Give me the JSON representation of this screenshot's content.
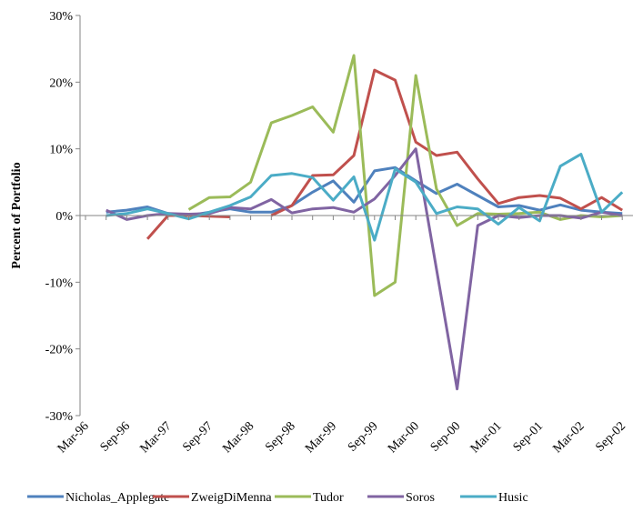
{
  "chart_data": {
    "type": "line",
    "y_label": "Percent of Portfolio",
    "categories": [
      "Mar-96",
      null,
      "Sep-96",
      null,
      "Mar-97",
      null,
      "Sep-97",
      null,
      "Mar-98",
      null,
      "Sep-98",
      null,
      "Mar-99",
      null,
      "Sep-99",
      null,
      "Mar-00",
      null,
      "Sep-00",
      null,
      "Mar-01",
      null,
      "Sep-01",
      null,
      "Mar-02",
      null,
      "Sep-02"
    ],
    "ylim": [
      -30,
      30
    ],
    "yticks": [
      {
        "value": -30,
        "label": "-30%"
      },
      {
        "value": -20,
        "label": "-20%"
      },
      {
        "value": -10,
        "label": "-10%"
      },
      {
        "value": 0,
        "label": "0%"
      },
      {
        "value": 10,
        "label": "10%"
      },
      {
        "value": 20,
        "label": "20%"
      },
      {
        "value": 30,
        "label": "30%"
      }
    ],
    "legend": "bottom",
    "series": [
      {
        "name": "Nicholas_Applegate",
        "color": "#4f81bd",
        "values": [
          null,
          0.5,
          0.8,
          1.3,
          0.3,
          0,
          0.5,
          1,
          0.5,
          0.5,
          1.5,
          3.5,
          5.2,
          2,
          6.7,
          7.2,
          5.2,
          3.3,
          4.7,
          3,
          1.3,
          1.5,
          0.8,
          1.6,
          0.8,
          0.5,
          0.3
        ]
      },
      {
        "name": "ZweigDiMenna",
        "color": "#c0504d",
        "values": [
          null,
          null,
          null,
          -3.5,
          0,
          0,
          -0.1,
          -0.2,
          null,
          0,
          1.5,
          6,
          6.1,
          9,
          21.8,
          20.3,
          11,
          9,
          9.5,
          5.5,
          1.8,
          2.7,
          3,
          2.6,
          1,
          2.7,
          0.8
        ]
      },
      {
        "name": "Tudor",
        "color": "#9bbb59",
        "values": [
          null,
          null,
          null,
          null,
          null,
          0.9,
          2.7,
          2.8,
          5,
          13.9,
          15,
          16.3,
          12.5,
          24,
          -12,
          -10,
          21,
          4,
          -1.5,
          0.3,
          0.2,
          0.3,
          0.5,
          -0.6,
          0,
          -0.2,
          0
        ]
      },
      {
        "name": "Soros",
        "color": "#8064a2",
        "values": [
          null,
          0.8,
          -0.6,
          0,
          0.3,
          0.2,
          0.3,
          1.2,
          1,
          2.4,
          0.4,
          1,
          1.2,
          0.5,
          2.5,
          6,
          10,
          -8,
          -26,
          -1.5,
          0,
          -0.3,
          0,
          0,
          -0.4,
          0.5,
          0
        ]
      },
      {
        "name": "Husic",
        "color": "#4bacc6",
        "values": [
          null,
          0,
          0.3,
          1,
          0.3,
          -0.5,
          0.5,
          1.5,
          2.8,
          6,
          6.3,
          5.7,
          2.3,
          5.8,
          -3.7,
          7,
          5,
          0.3,
          1.3,
          1,
          -1.3,
          1.2,
          -0.8,
          7.4,
          9.2,
          0.5,
          3.5
        ]
      }
    ]
  }
}
